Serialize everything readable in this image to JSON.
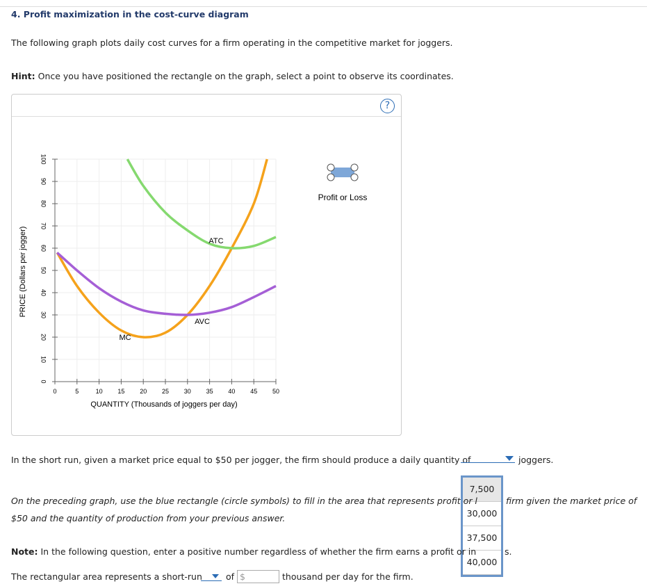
{
  "heading": "4. Profit maximization in the cost-curve diagram",
  "intro": "The following graph plots daily cost curves for a firm operating in the competitive market for joggers.",
  "hint": {
    "label": "Hint:",
    "text": "Once you have positioned the rectangle on the graph, select a point to observe its coordinates."
  },
  "help_icon": "?",
  "tool_label": "Profit or Loss",
  "chart_data": {
    "type": "line",
    "x_label": "QUANTITY (Thousands of joggers per day)",
    "y_label": "PRICE (Dollars per jogger)",
    "xlim": [
      0,
      50
    ],
    "ylim": [
      0,
      100
    ],
    "xticks": [
      0,
      5,
      10,
      15,
      20,
      25,
      30,
      35,
      40,
      45,
      50
    ],
    "yticks": [
      0,
      10,
      20,
      30,
      40,
      50,
      60,
      70,
      80,
      90,
      100
    ],
    "grid": true,
    "series": [
      {
        "name": "MC",
        "color": "#f5a21b",
        "x": [
          0.5,
          5,
          10,
          15,
          20,
          25,
          30,
          35,
          40,
          45,
          48
        ],
        "values": [
          58,
          43,
          31,
          23,
          20,
          22,
          30,
          43,
          60,
          80,
          100
        ]
      },
      {
        "name": "AVC",
        "color": "#a55fd6",
        "x": [
          0.5,
          5,
          10,
          15,
          20,
          25,
          30,
          35,
          40,
          45,
          50
        ],
        "values": [
          58,
          50,
          42,
          36,
          32,
          30.5,
          30,
          31,
          33.5,
          38,
          43
        ]
      },
      {
        "name": "ATC",
        "color": "#85d96f",
        "x": [
          16.4,
          20,
          25,
          30,
          35,
          40,
          45,
          50
        ],
        "values": [
          100,
          88,
          76,
          68,
          62,
          60,
          61,
          65
        ]
      }
    ]
  },
  "question1": {
    "before": "In the short run, given a market price equal to $50 per jogger, the firm should produce a daily quantity of",
    "after": "joggers.",
    "options": [
      "7,500",
      "30,000",
      "37,500",
      "40,000"
    ]
  },
  "instruction": {
    "line1_left": "On the preceding graph, use the blue rectangle (circle symbols) to fill in the area that represents profit or l",
    "line1_right": "firm given the market price of",
    "line2": "$50 and the quantity of production from your previous answer."
  },
  "note": {
    "label": "Note:",
    "text": "In the following question, enter a positive number regardless of whether the firm earns a profit or in",
    "tail": "s."
  },
  "question2": {
    "before": "The rectangular area represents a short-run",
    "of": "of",
    "currency": "$",
    "after": "thousand per day for the firm."
  }
}
